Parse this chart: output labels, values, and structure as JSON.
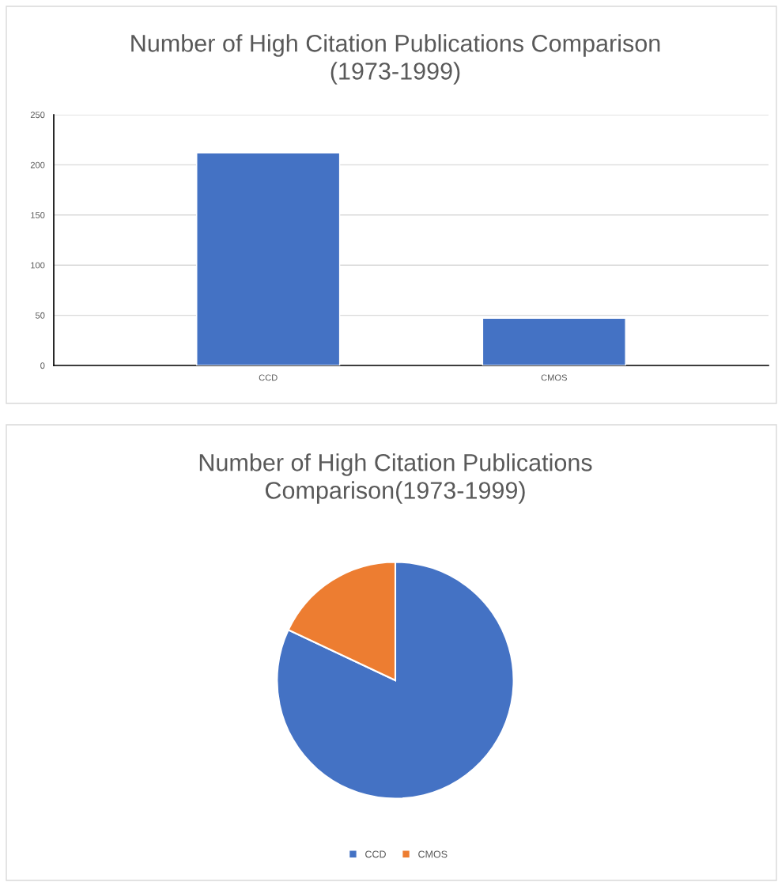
{
  "chart_data": [
    {
      "type": "bar",
      "title": "Number of High Citation Publications Comparison\n(1973-1999)",
      "categories": [
        "CCD",
        "CMOS"
      ],
      "values": [
        212,
        47
      ],
      "color": "#4472c4",
      "ylim": [
        0,
        250
      ],
      "yticks": [
        0,
        50,
        100,
        150,
        200,
        250
      ],
      "grid": "y"
    },
    {
      "type": "pie",
      "title": "Number of High Citation Publications\nComparison(1973-1999)",
      "categories": [
        "CCD",
        "CMOS"
      ],
      "values": [
        82,
        18
      ],
      "colors": [
        "#4472c4",
        "#ed7d31"
      ],
      "legend": "bottom"
    }
  ]
}
